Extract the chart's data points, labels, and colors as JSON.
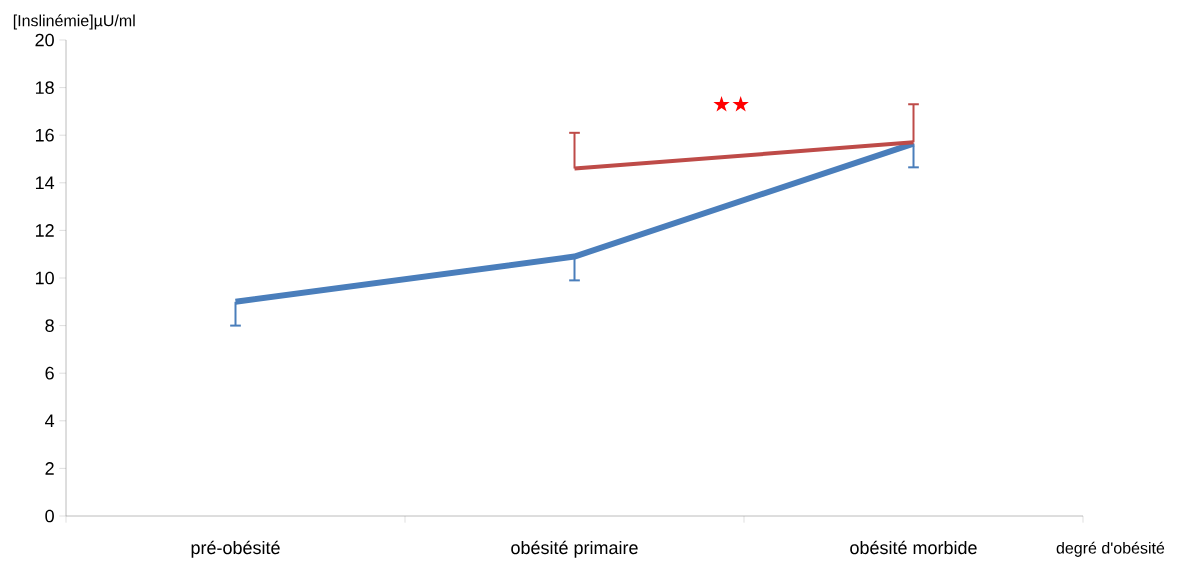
{
  "chart_data": {
    "type": "line",
    "ylabel": "[Inslinémie]µU/ml",
    "xlabel": "degré d'obésité",
    "categories": [
      "pré-obésité",
      "obésité primaire",
      "obésité morbide"
    ],
    "ylim": [
      0,
      20
    ],
    "yticks": [
      0,
      2,
      4,
      6,
      8,
      10,
      12,
      14,
      16,
      18,
      20
    ],
    "grid": false,
    "marker": "none",
    "line_style": "solid",
    "series": [
      {
        "color": "#4a7ebb",
        "values": [
          9.0,
          10.9,
          15.65
        ],
        "errors": [
          [
            8.0,
            9.0
          ],
          [
            9.9,
            10.9
          ],
          [
            14.65,
            15.65
          ]
        ]
      },
      {
        "color": "#be4b48",
        "values": [
          null,
          14.6,
          15.7
        ],
        "errors": [
          null,
          [
            14.6,
            16.1
          ],
          [
            15.7,
            17.3
          ]
        ]
      }
    ],
    "annotations": [
      "★★"
    ]
  }
}
